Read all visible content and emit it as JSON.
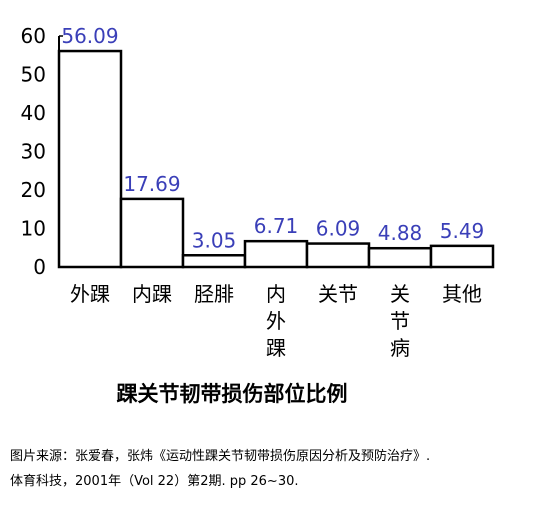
{
  "chart_data": {
    "type": "bar",
    "title": "踝关节韧带损伤部位比例",
    "categories": [
      "外踝",
      "内踝",
      "胫腓",
      "内外踝",
      "关节",
      "关节病",
      "其他"
    ],
    "category_lines": [
      [
        "外踝"
      ],
      [
        "内踝"
      ],
      [
        "胫腓"
      ],
      [
        "内",
        "外",
        "踝"
      ],
      [
        "关节"
      ],
      [
        "关",
        "节",
        "病"
      ],
      [
        "其他"
      ]
    ],
    "values": [
      56.09,
      17.69,
      3.05,
      6.71,
      6.09,
      4.88,
      5.49
    ],
    "value_labels": [
      "56.09",
      "17.69",
      "3.05",
      "6.71",
      "6.09",
      "4.88",
      "5.49"
    ],
    "yticks": [
      "0",
      "10",
      "20",
      "30",
      "40",
      "50",
      "60"
    ],
    "ylim": [
      0,
      60
    ],
    "xlabel": "",
    "ylabel": "",
    "grid": false,
    "label_color": "#3a3fb8"
  },
  "source": {
    "line1": "图片来源：张爱春，张炜《运动性踝关节韧带损伤原因分析及预防治疗》.",
    "line2": "体育科技，2001年（Vol 22）第2期. pp 26~30."
  }
}
